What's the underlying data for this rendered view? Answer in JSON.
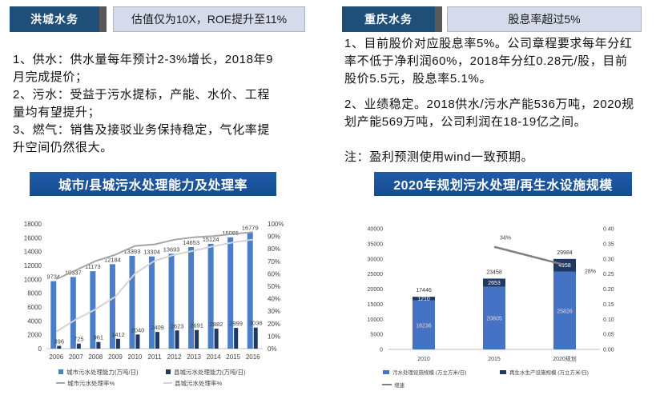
{
  "colors": {
    "tag_dark": "#1F4E79",
    "tag_accent": "#595959",
    "tag_light": "#D5DBEA",
    "banner": "#1F5CA9"
  },
  "left_panel": {
    "company_tag": "洪城水务",
    "headline": "估值仅为10X，ROE提升至11%",
    "lines": [
      "1、供水：供水量每年预计2-3%增长，2018年9",
      "月完成提价；",
      "2、污水：受益于污水提标，产能、水价、工程",
      "量均有望提升；",
      "3、燃气：销售及接驳业务保持稳定，气化率提",
      "升空间仍然很大。"
    ],
    "chart_title": "城市/县城污水处理能力及处理率"
  },
  "right_panel": {
    "company_tag": "重庆水务",
    "headline": "股息率超过5%",
    "point1_lines": [
      "1、目前股价对应股息率5%。公司章程要求每年分红",
      "率不低于净利润60%，2018年分红0.28元/股，目前",
      "股价5.5元，股息率5.1%。"
    ],
    "point2_lines": [
      "2、业绩稳定。2018供水/污水产能536万吨，2020规",
      "划产能569万吨，公司利润在18-19亿之间。"
    ],
    "note": "注：盈利预测使用wind一致预期。",
    "chart_title": "2020年规划污水处理/再生水设施规模"
  },
  "chart_data": [
    {
      "type": "bar",
      "categories": [
        "2006",
        "2007",
        "2008",
        "2009",
        "2010",
        "2011",
        "2012",
        "2013",
        "2014",
        "2015",
        "2016"
      ],
      "series": [
        {
          "name": "城市污水处理能力(万吨/日)",
          "type": "bar",
          "axis": "left",
          "color": "#4A7EC6",
          "values": [
            9734,
            10337,
            11173,
            12184,
            13393,
            13304,
            13693,
            14653,
            15124,
            16065,
            16779
          ]
        },
        {
          "name": "县城污水处理能力(万吨/日)",
          "type": "bar",
          "axis": "left",
          "color": "#1F3864",
          "values": [
            396,
            725,
            961,
            1412,
            2040,
            2409,
            2623,
            2691,
            2882,
            2999,
            3036
          ]
        },
        {
          "name": "城市污水处理率%",
          "type": "line",
          "axis": "right",
          "color": "#A5A5A5",
          "values": [
            55.7,
            62.9,
            70.2,
            75.3,
            82.3,
            83.6,
            87.3,
            89.3,
            90.2,
            91.9,
            93.4
          ]
        },
        {
          "name": "县城污水处理率%",
          "type": "line",
          "axis": "right",
          "color": "#D3D3D3",
          "values": [
            13.6,
            23.4,
            31.6,
            41.6,
            60.1,
            70.4,
            75.2,
            78.5,
            82.1,
            85.2,
            87.4
          ]
        }
      ],
      "ylim": [
        0,
        18000
      ],
      "y_ticks": [
        0,
        2000,
        4000,
        6000,
        8000,
        10000,
        12000,
        14000,
        16000,
        18000
      ],
      "y2lim": [
        0,
        100
      ],
      "y2_ticks": [
        "0%",
        "10%",
        "20%",
        "30%",
        "40%",
        "50%",
        "60%",
        "70%",
        "80%",
        "90%",
        "100%"
      ],
      "grid": false,
      "legend": "bottom"
    },
    {
      "type": "bar",
      "stacked": true,
      "categories": [
        "2010",
        "2015",
        "2020规划"
      ],
      "series": [
        {
          "name": "污水处理设施规模 (万立方米/日)",
          "type": "bar",
          "axis": "left",
          "color": "#4472C4",
          "values": [
            16236,
            20805,
            25826
          ]
        },
        {
          "name": "再生水生产设施规模 (万立方米/日)",
          "type": "bar",
          "axis": "left",
          "color": "#1F3864",
          "values": [
            1210,
            2653,
            4158
          ]
        },
        {
          "name": "增速",
          "type": "line",
          "axis": "right",
          "color": "#7F7F7F",
          "values": [
            null,
            0.34,
            0.28
          ],
          "labels": [
            null,
            "34%",
            "28%"
          ]
        }
      ],
      "totals": [
        17446,
        23458,
        29984
      ],
      "ylim": [
        0,
        40000
      ],
      "y_ticks": [
        0,
        5000,
        10000,
        15000,
        20000,
        25000,
        30000,
        35000,
        40000
      ],
      "y2lim": [
        0,
        0.4
      ],
      "y2_ticks": [
        "0.00",
        "0.05",
        "0.10",
        "0.15",
        "0.20",
        "0.25",
        "0.30",
        "0.35",
        "0.40"
      ],
      "grid": false,
      "legend": "bottom"
    }
  ]
}
